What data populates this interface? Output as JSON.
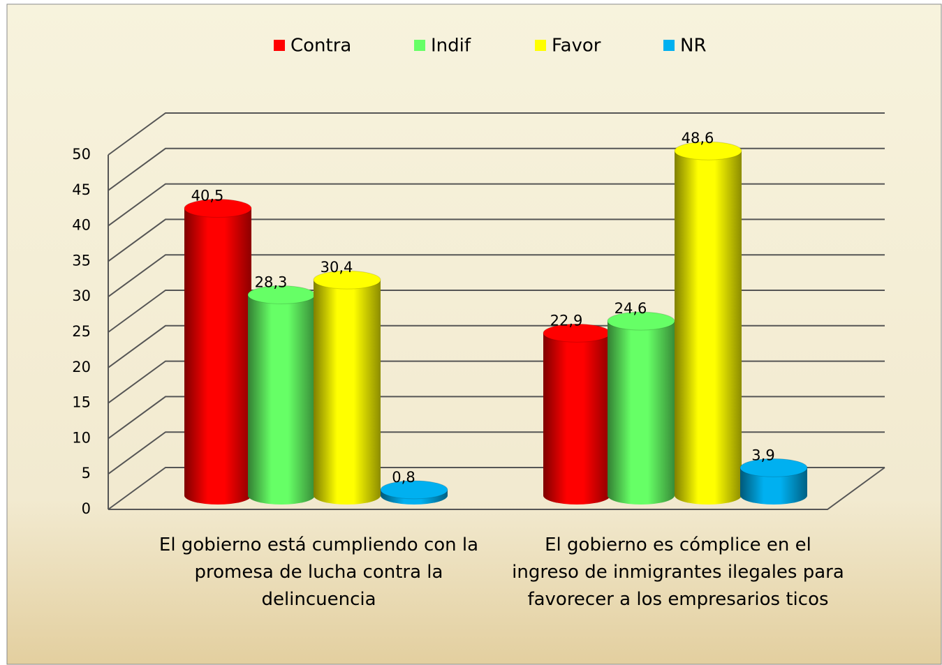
{
  "chart_data": {
    "type": "bar3d",
    "categories": [
      "El gobierno está cumpliendo con la promesa de lucha contra la delincuencia",
      "El gobierno es cómplice en el ingreso de inmigrantes ilegales para favorecer a los empresarios ticos"
    ],
    "series": [
      {
        "name": "Contra",
        "color": "#ff0000",
        "values": [
          40.5,
          22.9
        ],
        "value_labels": [
          "40,5",
          "22,9"
        ]
      },
      {
        "name": "Indif",
        "color": "#66ff66",
        "values": [
          28.3,
          24.6
        ],
        "value_labels": [
          "28,3",
          "24,6"
        ]
      },
      {
        "name": "Favor",
        "color": "#ffff00",
        "values": [
          30.4,
          48.6
        ],
        "value_labels": [
          "30,4",
          "48,6"
        ]
      },
      {
        "name": "NR",
        "color": "#00b0f0",
        "values": [
          0.8,
          3.9
        ],
        "value_labels": [
          "0,8",
          "3,9"
        ]
      }
    ],
    "ylim": [
      0,
      50
    ],
    "yticks": [
      0,
      5,
      10,
      15,
      20,
      25,
      30,
      35,
      40,
      45,
      50
    ],
    "grid": true,
    "legend": "top"
  }
}
